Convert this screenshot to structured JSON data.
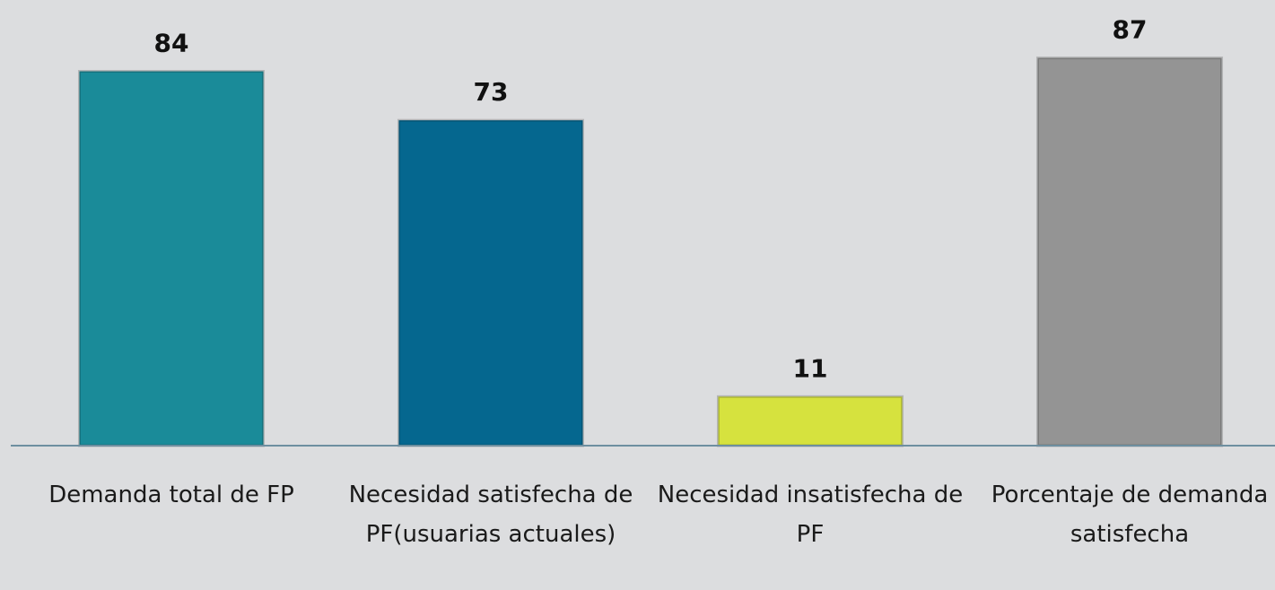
{
  "chart_data": {
    "type": "bar",
    "categories": [
      "Demanda total de FP",
      "Necesidad satisfecha de PF(usuarias actuales)",
      "Necesidad insatisfecha de PF",
      "Porcentaje de demanda satisfecha"
    ],
    "values": [
      84,
      73,
      11,
      87
    ],
    "colors": [
      "#1a8b99",
      "#05678f",
      "#d6e23e",
      "#949494"
    ],
    "ylim": [
      0,
      100
    ]
  }
}
